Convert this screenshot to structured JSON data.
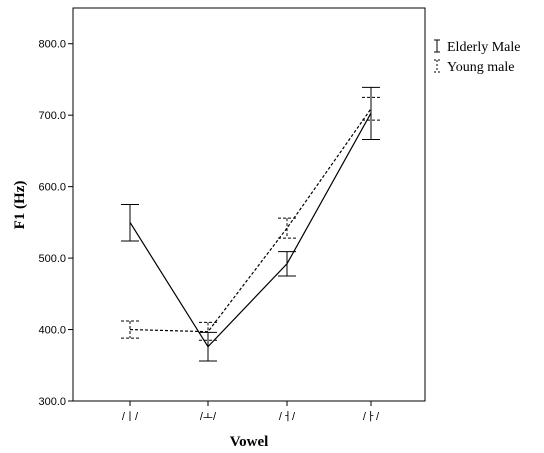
{
  "chart_data": {
    "type": "line",
    "xlabel": "Vowel",
    "ylabel": "F1 (Hz)",
    "categories": [
      "/ㅣ/",
      "/ㅗ/",
      "/ㅓ/",
      "/ㅏ/"
    ],
    "ylim": [
      300,
      850
    ],
    "yticks": [
      "300.0",
      "400.0",
      "500.0",
      "600.0",
      "700.0",
      "800.0"
    ],
    "grid": false,
    "legend_position": "right",
    "series": [
      {
        "name": "Elderly Male",
        "style": "solid",
        "color": "#000000",
        "values": [
          550,
          376,
          492,
          703
        ],
        "error_low": [
          524,
          356,
          475,
          666
        ],
        "error_high": [
          575,
          396,
          509,
          739
        ]
      },
      {
        "name": "Young male",
        "style": "dashed",
        "color": "#000000",
        "values": [
          400,
          397,
          542,
          709
        ],
        "error_low": [
          388,
          385,
          528,
          693
        ],
        "error_high": [
          412,
          410,
          556,
          725
        ]
      }
    ]
  }
}
